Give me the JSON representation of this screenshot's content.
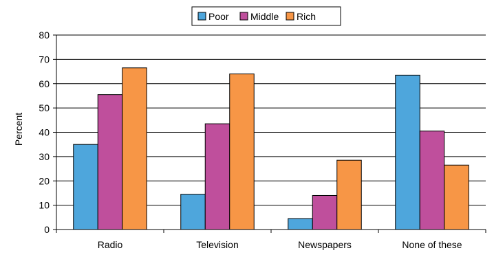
{
  "chart_data": {
    "type": "bar",
    "title": "",
    "xlabel": "",
    "ylabel": "Percent",
    "ylim": [
      0,
      80
    ],
    "yticks": [
      0,
      10,
      20,
      30,
      40,
      50,
      60,
      70,
      80
    ],
    "grid": true,
    "legend_position": "top-center",
    "categories": [
      "Radio",
      "Television",
      "Newspapers",
      "None of these"
    ],
    "series": [
      {
        "name": "Poor",
        "color": "#4ea6dc",
        "values": [
          35,
          14.5,
          4.5,
          63.5
        ]
      },
      {
        "name": "Middle",
        "color": "#bf4f9c",
        "values": [
          55.5,
          43.5,
          14,
          40.5
        ]
      },
      {
        "name": "Rich",
        "color": "#f79646",
        "values": [
          66.5,
          64,
          28.5,
          26.5
        ]
      }
    ]
  }
}
